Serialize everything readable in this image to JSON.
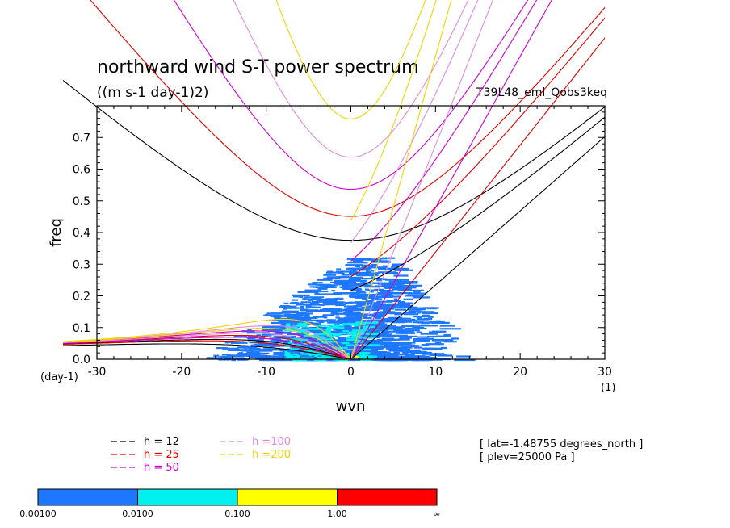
{
  "chart_data": {
    "type": "heatmap",
    "title": "northward wind S-T power spectrum",
    "subtitle": "((m s-1 day-1)2)",
    "run_label": "T39L48_eml_Qobs3keq",
    "xlabel": "wvn",
    "ylabel": "freq",
    "x_unit": "(1)",
    "y_unit": "(day-1)",
    "xlim": [
      -30,
      30
    ],
    "ylim": [
      0,
      0.8
    ],
    "x_ticks": [
      "-30",
      "-20",
      "-10",
      "0",
      "10",
      "20",
      "30"
    ],
    "y_ticks": [
      "0.0",
      "0.1",
      "0.2",
      "0.3",
      "0.4",
      "0.5",
      "0.6",
      "0.7"
    ],
    "x_tick_values": [
      -30,
      -20,
      -10,
      0,
      10,
      20,
      30
    ],
    "y_tick_values": [
      0,
      0.1,
      0.2,
      0.3,
      0.4,
      0.5,
      0.6,
      0.7
    ],
    "dispersion_curves": [
      {
        "label": "h = 12",
        "h": 12,
        "color": "#000000"
      },
      {
        "label": "h = 25",
        "h": 25,
        "color": "#dd0000"
      },
      {
        "label": "h = 50",
        "h": 50,
        "color": "#cc00cc"
      },
      {
        "label": "h =100",
        "h": 100,
        "color": "#e08be0"
      },
      {
        "label": "h =200",
        "h": 200,
        "color": "#f2d400"
      }
    ],
    "annotations": [
      "[ lat=-1.48755 degrees_north ]",
      "[ plev=25000 Pa ]"
    ],
    "colorbar": {
      "levels": [
        "0.00100",
        "0.0100",
        "0.100",
        "1.00",
        "∞"
      ],
      "colors": [
        "#1e78ff",
        "#00f0f0",
        "#ffff00",
        "#ff0000"
      ]
    },
    "power_regions": [
      {
        "level": "0.00100-0.0100",
        "x": [
          -20,
          12
        ],
        "y": [
          0,
          0.33
        ],
        "peak_x": -2,
        "peak_y": 0.1
      },
      {
        "level": "0.0100-0.100",
        "x": [
          -8,
          2
        ],
        "y": [
          0,
          0.12
        ],
        "peak_x": -3,
        "peak_y": 0.04
      }
    ]
  }
}
